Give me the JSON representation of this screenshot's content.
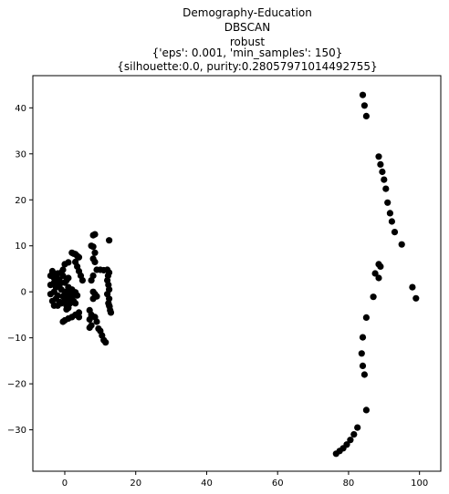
{
  "chart_data": {
    "type": "scatter",
    "title_lines": [
      "Demography-Education",
      "DBSCAN",
      "robust",
      "{'eps': 0.001, 'min_samples': 150}",
      "{silhouette:0.0, purity:0.28057971014492755}"
    ],
    "xlabel": "",
    "ylabel": "",
    "xlim": [
      -9,
      106
    ],
    "ylim": [
      -39,
      47
    ],
    "xticks": [
      0,
      20,
      40,
      60,
      80,
      100
    ],
    "yticks": [
      -30,
      -20,
      -10,
      0,
      10,
      20,
      30,
      40
    ],
    "grid": false,
    "legend": "none",
    "point_color": "#000000",
    "series": [
      {
        "values": [
          [
            84,
            42.8
          ],
          [
            84.5,
            40.5
          ],
          [
            85,
            38.2
          ],
          [
            88.5,
            29.4
          ],
          [
            89,
            27.7
          ],
          [
            89.5,
            26.1
          ],
          [
            90,
            24.4
          ],
          [
            90.5,
            22.4
          ],
          [
            91,
            19.4
          ],
          [
            91.7,
            17.1
          ],
          [
            92.2,
            15.3
          ],
          [
            93,
            13
          ],
          [
            95,
            10.3
          ],
          [
            98,
            1
          ],
          [
            99,
            -1.4
          ],
          [
            87.5,
            4
          ],
          [
            89,
            5.5
          ],
          [
            88.5,
            6
          ],
          [
            88.5,
            3
          ],
          [
            87,
            -1.1
          ],
          [
            85,
            -5.6
          ],
          [
            84,
            -9.9
          ],
          [
            83.7,
            -13.4
          ],
          [
            84,
            -16.1
          ],
          [
            84.5,
            -18
          ],
          [
            85,
            -25.7
          ],
          [
            82.5,
            -29.5
          ],
          [
            81.5,
            -31
          ],
          [
            80.5,
            -32.2
          ],
          [
            79.5,
            -33.2
          ],
          [
            78.5,
            -34
          ],
          [
            77.5,
            -34.6
          ],
          [
            76.5,
            -35.2
          ],
          [
            -3.5,
            4.5
          ],
          [
            -3,
            3
          ],
          [
            -2,
            4
          ],
          [
            -1,
            4.2
          ],
          [
            -4,
            1.5
          ],
          [
            -3,
            2
          ],
          [
            -2.5,
            1
          ],
          [
            -1.5,
            2.5
          ],
          [
            -0.5,
            3.5
          ],
          [
            0,
            2
          ],
          [
            -4,
            -0.5
          ],
          [
            -3,
            0
          ],
          [
            -2,
            -0.8
          ],
          [
            -1,
            0.5
          ],
          [
            0,
            0
          ],
          [
            1,
            1
          ],
          [
            -3.5,
            -2
          ],
          [
            -2.5,
            -1.5
          ],
          [
            -1.5,
            -2.2
          ],
          [
            -0.5,
            -1
          ],
          [
            0.5,
            -0.5
          ],
          [
            1.5,
            0.2
          ],
          [
            -3,
            -3
          ],
          [
            -2,
            -3
          ],
          [
            -1,
            -2.5
          ],
          [
            0,
            -1.8
          ],
          [
            1,
            -1.5
          ],
          [
            2,
            -1
          ],
          [
            2.5,
            -2
          ],
          [
            1.5,
            -2.5
          ],
          [
            0.5,
            -3
          ],
          [
            -4,
            3.5
          ],
          [
            -2,
            2.8
          ],
          [
            -0.5,
            4.8
          ],
          [
            1,
            3
          ],
          [
            0.5,
            2.5
          ],
          [
            -1.5,
            1.5
          ],
          [
            2,
            0.5
          ],
          [
            3,
            -0.5
          ],
          [
            3,
            -2.5
          ],
          [
            -2.5,
            3.5
          ],
          [
            1,
            -3.5
          ],
          [
            0.5,
            -3.8
          ],
          [
            0,
            -6.2
          ],
          [
            -0.5,
            -6.5
          ],
          [
            1,
            -5.8
          ],
          [
            2,
            -5.5
          ],
          [
            3,
            -5
          ],
          [
            4,
            -4.5
          ],
          [
            4,
            -5.5
          ],
          [
            0,
            6
          ],
          [
            1,
            6.4
          ],
          [
            2,
            8.5
          ],
          [
            2.5,
            8.3
          ],
          [
            3,
            8.2
          ],
          [
            3.5,
            7.8
          ],
          [
            4,
            7.5
          ],
          [
            3,
            6.5
          ],
          [
            3.5,
            5.5
          ],
          [
            4,
            4.5
          ],
          [
            4.5,
            3.5
          ],
          [
            5,
            2.5
          ],
          [
            3,
            -0.1
          ],
          [
            3.5,
            -0.8
          ],
          [
            8,
            12.3
          ],
          [
            8.5,
            12.5
          ],
          [
            7.5,
            10
          ],
          [
            8,
            9.8
          ],
          [
            8.5,
            8.5
          ],
          [
            8,
            7.2
          ],
          [
            8.5,
            6.5
          ],
          [
            9,
            4.8
          ],
          [
            8,
            3.5
          ],
          [
            7.5,
            2.5
          ],
          [
            8,
            0
          ],
          [
            8.5,
            -0.5
          ],
          [
            9,
            -1
          ],
          [
            8,
            -1.5
          ],
          [
            7,
            -4
          ],
          [
            7.5,
            -5
          ],
          [
            7,
            -6
          ],
          [
            7.5,
            -7.3
          ],
          [
            7,
            -7.8
          ],
          [
            8.5,
            -5.5
          ],
          [
            9,
            -6.5
          ],
          [
            9.5,
            -8
          ],
          [
            10,
            -8.5
          ],
          [
            10.5,
            -9.5
          ],
          [
            11,
            -10.5
          ],
          [
            11.5,
            -11
          ],
          [
            12.5,
            11.2
          ],
          [
            10,
            4.8
          ],
          [
            11,
            4.7
          ],
          [
            12,
            4.8
          ],
          [
            12.5,
            4.2
          ],
          [
            12.2,
            3.5
          ],
          [
            12,
            2.5
          ],
          [
            12.3,
            1.5
          ],
          [
            12.5,
            0.5
          ],
          [
            12,
            -0.5
          ],
          [
            12.5,
            -1.5
          ],
          [
            12.3,
            -2.5
          ],
          [
            12.6,
            -3.2
          ],
          [
            12.8,
            -4
          ],
          [
            13,
            -4.5
          ],
          [
            12.5,
            -3
          ]
        ]
      }
    ]
  }
}
